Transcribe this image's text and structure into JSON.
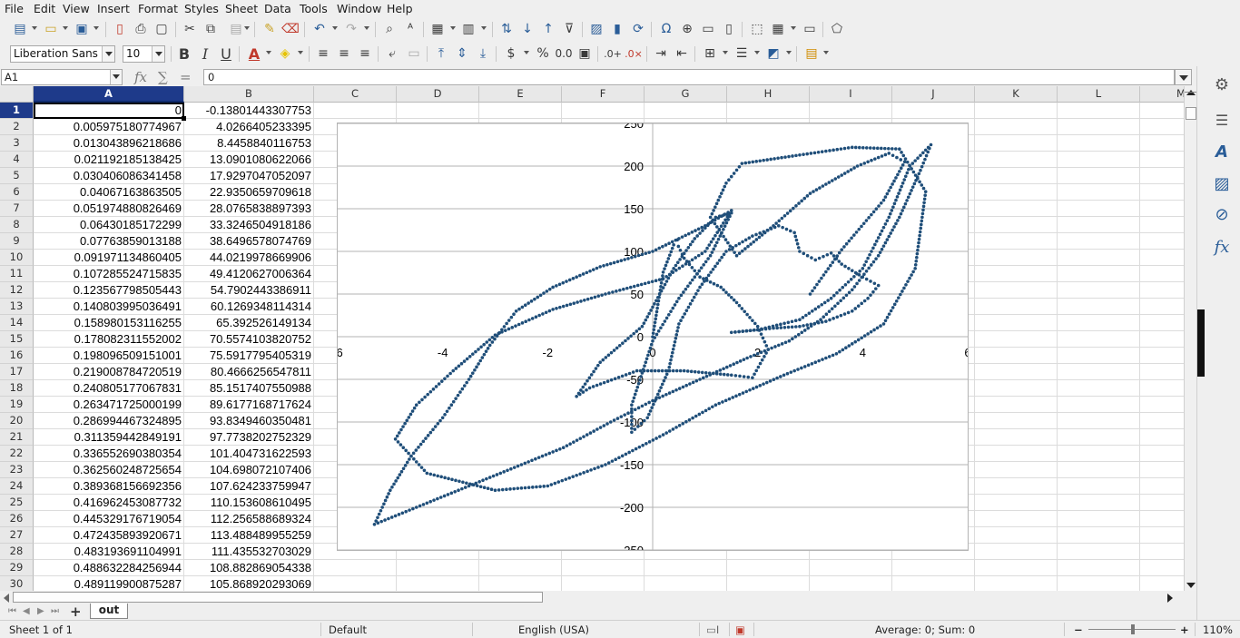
{
  "menu": [
    "File",
    "Edit",
    "View",
    "Insert",
    "Format",
    "Styles",
    "Sheet",
    "Data",
    "Tools",
    "Window",
    "Help"
  ],
  "font": {
    "name": "Liberation Sans",
    "size": "10"
  },
  "formula_bar": {
    "name_box": "A1",
    "content": "0"
  },
  "columns": [
    "A",
    "B",
    "C",
    "D",
    "E",
    "F",
    "G",
    "H",
    "I",
    "J",
    "K",
    "L",
    "M"
  ],
  "rows": [
    {
      "n": "1",
      "a": "0",
      "b": "-0.13801443307753"
    },
    {
      "n": "2",
      "a": "0.005975180774967",
      "b": "4.0266405233395"
    },
    {
      "n": "3",
      "a": "0.013043896218686",
      "b": "8.4458840116753"
    },
    {
      "n": "4",
      "a": "0.021192185138425",
      "b": "13.0901080622066"
    },
    {
      "n": "5",
      "a": "0.030406086341458",
      "b": "17.9297047052097"
    },
    {
      "n": "6",
      "a": "0.04067163863505",
      "b": "22.9350659709618"
    },
    {
      "n": "7",
      "a": "0.051974880826469",
      "b": "28.0765838897393"
    },
    {
      "n": "8",
      "a": "0.06430185172299",
      "b": "33.3246504918186"
    },
    {
      "n": "9",
      "a": "0.07763859013188",
      "b": "38.6496578074769"
    },
    {
      "n": "10",
      "a": "0.091971134860405",
      "b": "44.0219978669906"
    },
    {
      "n": "11",
      "a": "0.107285524715835",
      "b": "49.4120627006364"
    },
    {
      "n": "12",
      "a": "0.123567798505443",
      "b": "54.7902443386911"
    },
    {
      "n": "13",
      "a": "0.140803995036491",
      "b": "60.1269348114314"
    },
    {
      "n": "14",
      "a": "0.158980153116255",
      "b": "65.392526149134"
    },
    {
      "n": "15",
      "a": "0.178082311552002",
      "b": "70.5574103820752"
    },
    {
      "n": "16",
      "a": "0.198096509151001",
      "b": "75.5917795405319"
    },
    {
      "n": "17",
      "a": "0.219008784720519",
      "b": "80.4666256547811"
    },
    {
      "n": "18",
      "a": "0.240805177067831",
      "b": "85.1517407550988"
    },
    {
      "n": "19",
      "a": "0.263471725000199",
      "b": "89.6177168717624"
    },
    {
      "n": "20",
      "a": "0.286994467324895",
      "b": "93.8349460350481"
    },
    {
      "n": "21",
      "a": "0.311359442849191",
      "b": "97.7738202752329"
    },
    {
      "n": "22",
      "a": "0.336552690380354",
      "b": "101.404731622593"
    },
    {
      "n": "23",
      "a": "0.362560248725654",
      "b": "104.698072107406"
    },
    {
      "n": "24",
      "a": "0.389368156692356",
      "b": "107.624233759947"
    },
    {
      "n": "25",
      "a": "0.416962453087732",
      "b": "110.153608610495"
    },
    {
      "n": "26",
      "a": "0.445329176719054",
      "b": "112.256588689324"
    },
    {
      "n": "27",
      "a": "0.472435893920671",
      "b": "113.488489955259"
    },
    {
      "n": "28",
      "a": "0.483193691104991",
      "b": "111.435532703029"
    },
    {
      "n": "29",
      "a": "0.488632284256944",
      "b": "108.882869054338"
    },
    {
      "n": "30",
      "a": "0.489119900875287",
      "b": "105.868920293069"
    }
  ],
  "sheet_tab": "out",
  "status": {
    "sheet": "Sheet 1 of 1",
    "style": "Default",
    "language": "English (USA)",
    "summary": "Average: 0; Sum: 0",
    "zoom": "110%"
  },
  "chart_data": {
    "type": "scatter",
    "title": "",
    "xlabel": "",
    "ylabel": "",
    "xlim": [
      -6,
      6
    ],
    "ylim": [
      -250,
      250
    ],
    "x_ticks": [
      "-6",
      "-4",
      "-2",
      "0",
      "2",
      "4",
      "6"
    ],
    "y_ticks": [
      "250",
      "200",
      "150",
      "100",
      "50",
      "0",
      "-50",
      "-100",
      "-150",
      "-200",
      "-250"
    ],
    "grid": "horizontal",
    "marker_color": "#1f4e79",
    "series": [
      {
        "points": [
          [
            0,
            -0.14
          ],
          [
            0.2,
            75.6
          ],
          [
            0.4,
            107.6
          ],
          [
            0.47,
            113.5
          ],
          [
            0.49,
            105.9
          ],
          [
            0.6,
            92
          ],
          [
            0.9,
            70
          ],
          [
            1.3,
            58
          ],
          [
            1.6,
            40
          ],
          [
            2.0,
            12
          ],
          [
            2.2,
            -15
          ],
          [
            1.9,
            -48
          ],
          [
            1.5,
            -45
          ],
          [
            0.6,
            -40
          ],
          [
            -0.3,
            -40
          ],
          [
            -1.2,
            -60
          ],
          [
            -1.45,
            -70
          ],
          [
            -1.0,
            -30
          ],
          [
            -0.2,
            12
          ],
          [
            0.4,
            80
          ],
          [
            0.8,
            115
          ],
          [
            1.2,
            140
          ],
          [
            1.5,
            145
          ],
          [
            1.1,
            95
          ],
          [
            0.5,
            45
          ],
          [
            0.0,
            -5
          ],
          [
            -0.4,
            -80
          ],
          [
            -0.4,
            -112
          ],
          [
            -0.1,
            -95
          ],
          [
            0.3,
            -40
          ],
          [
            0.5,
            15
          ],
          [
            0.9,
            58
          ],
          [
            1.4,
            100
          ],
          [
            1.9,
            118
          ],
          [
            2.4,
            130
          ],
          [
            2.7,
            122
          ],
          [
            2.8,
            100
          ],
          [
            3.1,
            90
          ],
          [
            3.4,
            98
          ],
          [
            3.6,
            85
          ],
          [
            4.0,
            70
          ],
          [
            4.3,
            60
          ],
          [
            4.1,
            45
          ],
          [
            3.8,
            30
          ],
          [
            3.3,
            18
          ],
          [
            2.8,
            12
          ],
          [
            2.3,
            10
          ],
          [
            1.5,
            5
          ],
          [
            2.0,
            8
          ],
          [
            2.8,
            20
          ],
          [
            3.4,
            45
          ],
          [
            4.0,
            80
          ],
          [
            4.5,
            140
          ],
          [
            4.9,
            200
          ],
          [
            5.3,
            225
          ],
          [
            5.1,
            195
          ],
          [
            4.7,
            140
          ],
          [
            4.3,
            95
          ],
          [
            3.8,
            55
          ],
          [
            3.2,
            20
          ],
          [
            2.6,
            -5
          ],
          [
            1.8,
            -25
          ],
          [
            0.9,
            -50
          ],
          [
            0.0,
            -75
          ],
          [
            -0.8,
            -100
          ],
          [
            -1.7,
            -130
          ],
          [
            -2.7,
            -155
          ],
          [
            -3.5,
            -175
          ],
          [
            -4.3,
            -195
          ],
          [
            -5.3,
            -220
          ],
          [
            -5.0,
            -180
          ],
          [
            -4.6,
            -140
          ],
          [
            -4.0,
            -95
          ],
          [
            -3.5,
            -50
          ],
          [
            -3.1,
            -10
          ],
          [
            -2.6,
            30
          ],
          [
            -1.9,
            58
          ],
          [
            -1.0,
            82
          ],
          [
            0.0,
            100
          ],
          [
            1.0,
            130
          ],
          [
            1.5,
            148
          ],
          [
            1.0,
            100
          ],
          [
            0.2,
            68
          ],
          [
            -0.9,
            50
          ],
          [
            -1.9,
            32
          ],
          [
            -3.0,
            2
          ],
          [
            -3.8,
            -40
          ],
          [
            -4.5,
            -80
          ],
          [
            -4.9,
            -120
          ],
          [
            -4.3,
            -160
          ],
          [
            -3.0,
            -180
          ],
          [
            -2.0,
            -175
          ],
          [
            -0.9,
            -150
          ],
          [
            0.2,
            -115
          ],
          [
            1.2,
            -80
          ],
          [
            2.5,
            -45
          ],
          [
            3.5,
            -20
          ],
          [
            4.4,
            15
          ],
          [
            5.0,
            80
          ],
          [
            5.2,
            170
          ],
          [
            4.7,
            220
          ],
          [
            3.8,
            222
          ],
          [
            2.8,
            213
          ],
          [
            1.7,
            203
          ],
          [
            1.4,
            180
          ],
          [
            1.1,
            140
          ],
          [
            1.6,
            95
          ],
          [
            2.3,
            130
          ],
          [
            3.0,
            168
          ],
          [
            3.9,
            200
          ],
          [
            4.5,
            215
          ],
          [
            4.8,
            205
          ],
          [
            4.4,
            160
          ],
          [
            3.6,
            102
          ],
          [
            3.0,
            50
          ]
        ]
      }
    ]
  }
}
